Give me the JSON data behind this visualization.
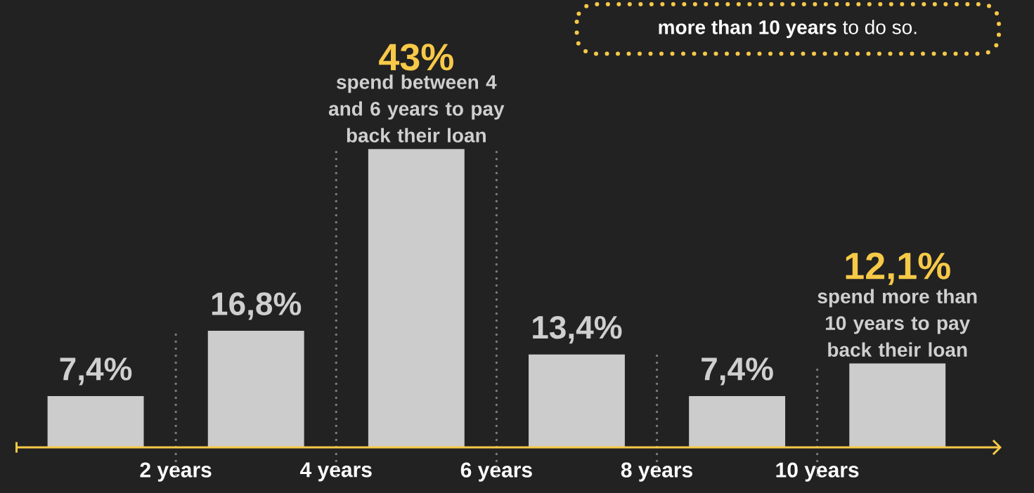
{
  "chart_data": {
    "type": "bar",
    "x": [
      1,
      3,
      5,
      7,
      9,
      11
    ],
    "values": [
      7.4,
      16.8,
      43,
      13.4,
      7.4,
      12.1
    ],
    "value_labels": [
      "7,4%",
      "16,8%",
      "43%",
      "13,4%",
      "7,4%",
      "12,1%"
    ],
    "color": "#cccccc",
    "xlim": [
      0,
      12.3
    ],
    "xticks": [
      {
        "value": 2,
        "label": "2 years"
      },
      {
        "value": 4,
        "label": "4 years"
      },
      {
        "value": 6,
        "label": "6 years"
      },
      {
        "value": 8,
        "label": "8 years"
      },
      {
        "value": 10,
        "label": "10 years"
      }
    ],
    "grid": "x",
    "tick_labels": "x",
    "annotations": [
      {
        "text": "spend between 4 and 6 years to pay back their loan",
        "x": 5,
        "y": 43
      },
      {
        "text": "spend more than 10 years to pay back their loan",
        "x": 11,
        "y": 12.1
      },
      "**more than 10 years** to do so."
    ]
  }
}
